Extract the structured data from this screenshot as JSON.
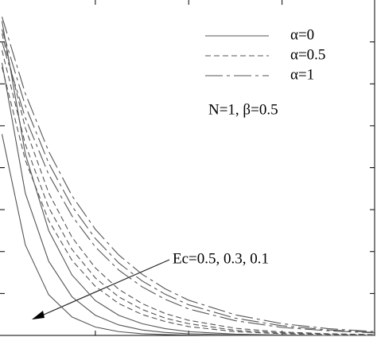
{
  "chart_data": {
    "type": "line",
    "x": [
      0,
      0.25,
      0.5,
      0.75,
      1,
      1.25,
      1.5,
      1.75,
      2,
      2.5,
      3,
      3.5,
      4
    ],
    "series": [
      {
        "name": "α=0",
        "dash": "solid",
        "color": "#555555",
        "values": [
          [
            7.5,
            4.33,
            2.5,
            1.44,
            0.83,
            0.48,
            0.28,
            0.16,
            0.09,
            0.03,
            0.01,
            0,
            0
          ],
          [
            6.5,
            3.39,
            1.77,
            0.92,
            0.48,
            0.25,
            0.13,
            0.07,
            0.04,
            0.01,
            0,
            0,
            0
          ],
          [
            4.8,
            2.16,
            0.97,
            0.44,
            0.2,
            0.09,
            0.04,
            0.02,
            0.01,
            0,
            0,
            0,
            0
          ]
        ]
      },
      {
        "name": "α=0.5",
        "dash": "dashed",
        "color": "#555555",
        "values": [
          [
            7.2,
            4.95,
            3.4,
            2.34,
            1.61,
            1.1,
            0.76,
            0.52,
            0.36,
            0.17,
            0.08,
            0.04,
            0.02
          ],
          [
            6.8,
            4.56,
            3.05,
            2.05,
            1.37,
            0.92,
            0.62,
            0.41,
            0.28,
            0.12,
            0.06,
            0.03,
            0.01
          ],
          [
            6.4,
            4.18,
            2.74,
            1.79,
            1.17,
            0.76,
            0.5,
            0.33,
            0.21,
            0.09,
            0.04,
            0.02,
            0.01
          ]
        ]
      },
      {
        "name": "α=1",
        "dash": "dashdot",
        "color": "#555555",
        "values": [
          [
            7.6,
            5.77,
            4.39,
            3.33,
            2.53,
            1.92,
            1.46,
            1.11,
            0.84,
            0.49,
            0.28,
            0.16,
            0.09
          ],
          [
            7.3,
            5.48,
            4.11,
            3.08,
            2.31,
            1.73,
            1.3,
            0.98,
            0.73,
            0.41,
            0.23,
            0.13,
            0.07
          ],
          [
            7.0,
            5.19,
            3.84,
            2.85,
            2.11,
            1.56,
            1.16,
            0.86,
            0.63,
            0.35,
            0.19,
            0.11,
            0.06
          ]
        ]
      }
    ],
    "xlim": [
      0,
      4
    ],
    "xticks": [
      1,
      2,
      3
    ],
    "ylim": [
      0,
      8
    ],
    "yticks": [
      1,
      2,
      3,
      4,
      5,
      6,
      7
    ],
    "annotations": [
      "Ec=0.5, 0.3, 0.1",
      "N=1, β=0.5"
    ]
  }
}
